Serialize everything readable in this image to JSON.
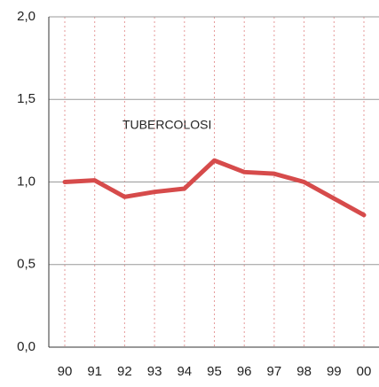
{
  "chart_data": {
    "type": "line",
    "annotation": "TUBERCOLOSI",
    "categories": [
      "90",
      "91",
      "92",
      "93",
      "94",
      "95",
      "96",
      "97",
      "98",
      "99",
      "00"
    ],
    "series": [
      {
        "name": "TUBERCOLOSI",
        "color": "#d64b4b",
        "values": [
          1.0,
          1.01,
          0.91,
          0.94,
          0.96,
          1.13,
          1.06,
          1.05,
          1.0,
          0.9,
          0.8
        ]
      }
    ],
    "ylim": [
      0,
      2
    ],
    "yticks": [
      {
        "value": 0,
        "label": "0,0"
      },
      {
        "value": 0.5,
        "label": "0,5"
      },
      {
        "value": 1,
        "label": "1,0"
      },
      {
        "value": 1.5,
        "label": "1,5"
      },
      {
        "value": 2,
        "label": "2,0"
      }
    ],
    "grid": true
  }
}
